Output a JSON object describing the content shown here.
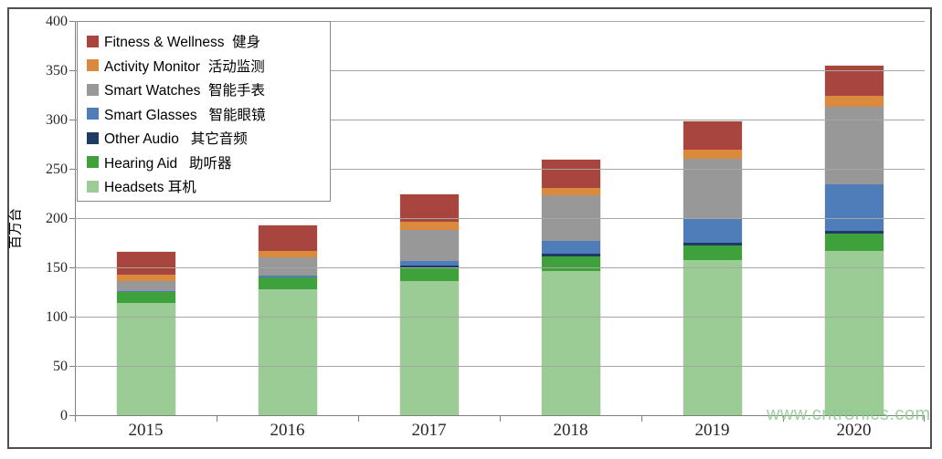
{
  "watermark": "www.cntronics.com",
  "axis_colors": {
    "gridline": "#a6a6a6",
    "axis_line": "#7f7f7f",
    "tick_label": "#262626"
  },
  "chart_data": {
    "type": "bar",
    "stacked": true,
    "title": "",
    "xlabel": "",
    "ylabel": "百万台",
    "ylim": [
      0,
      400
    ],
    "ytick_step": 50,
    "yticks": [
      0,
      50,
      100,
      150,
      200,
      250,
      300,
      350,
      400
    ],
    "grid": true,
    "legend_position": "top-left",
    "categories": [
      "2015",
      "2016",
      "2017",
      "2018",
      "2019",
      "2020"
    ],
    "series": [
      {
        "name": "Headsets",
        "legend_label": "Headsets 耳机",
        "color": "#9CCC96",
        "values": [
          115,
          129,
          137,
          147,
          158,
          168
        ]
      },
      {
        "name": "Hearing Aid",
        "legend_label": "Hearing Aid   助听器",
        "color": "#3FA13C",
        "values": [
          11,
          12,
          13,
          15,
          15,
          17
        ]
      },
      {
        "name": "Other Audio",
        "legend_label": "Other Audio   其它音频",
        "color": "#1F3A64",
        "values": [
          0,
          0,
          3,
          3,
          3,
          3
        ]
      },
      {
        "name": "Smart Glasses",
        "legend_label": "Smart Glasses   智能眼镜",
        "color": "#4E7DBA",
        "values": [
          1,
          2,
          4,
          13,
          24,
          47
        ]
      },
      {
        "name": "Smart Watches",
        "legend_label": "Smart Watches  智能手表",
        "color": "#989898",
        "values": [
          10,
          18,
          32,
          46,
          61,
          79
        ]
      },
      {
        "name": "Activity Monitor",
        "legend_label": "Activity Monitor  活动监测",
        "color": "#DB8A3D",
        "values": [
          7,
          7,
          8,
          8,
          9,
          11
        ]
      },
      {
        "name": "Fitness & Wellness",
        "legend_label": "Fitness & Wellness  健身",
        "color": "#A8453F",
        "values": [
          23,
          26,
          28,
          28,
          29,
          31
        ]
      }
    ]
  }
}
